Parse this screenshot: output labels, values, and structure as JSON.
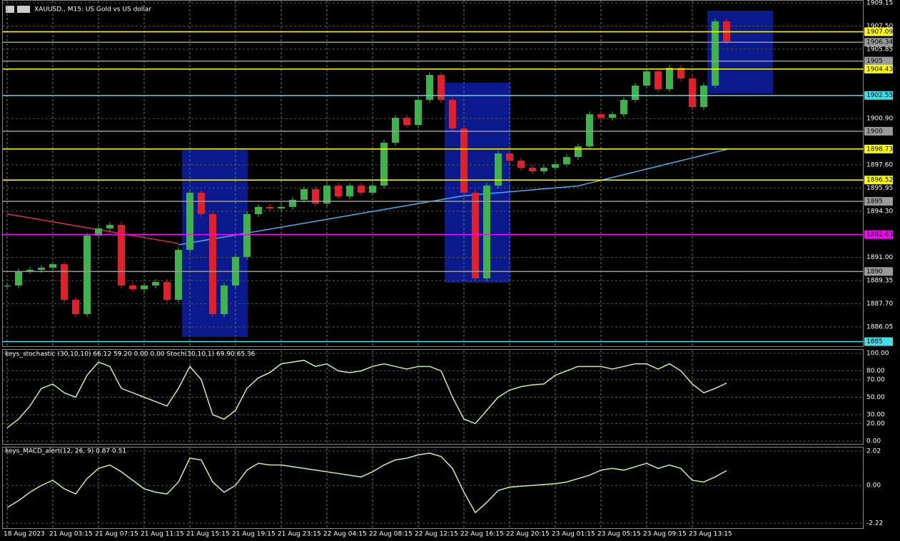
{
  "header": {
    "symbol": "XAUUSD., M15: US Gold vs US dollar"
  },
  "chart_data": [
    {
      "type": "candle",
      "up_color": "#3cb44b",
      "down_color": "#e0202a",
      "categories": [
        "18 Aug 2023",
        null,
        null,
        null,
        "21 Aug 03:15",
        null,
        null,
        null,
        "21 Aug 07:15",
        null,
        null,
        null,
        "21 Aug 11:15",
        null,
        null,
        null,
        "21 Aug 15:15",
        null,
        null,
        null,
        "21 Aug 19:15",
        null,
        null,
        null,
        "21 Aug 23:15",
        null,
        null,
        null,
        "22 Aug 04:15",
        null,
        null,
        null,
        "22 Aug 08:15",
        null,
        null,
        null,
        "22 Aug 12:15",
        null,
        null,
        null,
        "22 Aug 16:15",
        null,
        null,
        null,
        "22 Aug 20:15",
        null,
        null,
        null,
        "23 Aug 01:15",
        null,
        null,
        null,
        "23 Aug 05:15",
        null,
        null,
        null,
        "23 Aug 09:15",
        null,
        null,
        null,
        "23 Aug 13:15",
        null,
        null,
        null
      ],
      "values": [
        1889.0,
        1890.02,
        1890.12,
        1890.27,
        1890.52,
        1887.98,
        1886.96,
        1892.56,
        1893.07,
        1893.32,
        1889.0,
        1888.74,
        1889.0,
        1889.25,
        1887.98,
        1891.54,
        1895.61,
        1894.09,
        1886.96,
        1889.0,
        1891.04,
        1894.09,
        1894.6,
        1894.49,
        1894.6,
        1895.11,
        1895.87,
        1894.85,
        1896.12,
        1895.36,
        1896.12,
        1895.61,
        1896.12,
        1899.18,
        1900.96,
        1900.45,
        1902.23,
        1904.01,
        1902.23,
        1900.19,
        1895.61,
        1889.51,
        1896.12,
        1898.41,
        1897.9,
        1897.4,
        1897.14,
        1897.4,
        1897.65,
        1898.16,
        1898.92,
        1901.21,
        1900.96,
        1901.21,
        1902.23,
        1903.25,
        1904.27,
        1903.0,
        1904.52,
        1903.76,
        1901.72,
        1903.25,
        1907.83,
        1906.4
      ],
      "series": [
        {
          "color": "#d83050",
          "values": [
            1894.1,
            1893.96,
            1893.82,
            1893.68,
            1893.54,
            1893.4,
            1893.26,
            1893.12,
            1892.98,
            1892.84,
            1892.7,
            1892.56,
            1892.42,
            1892.28,
            1892.14,
            1892.0,
            null,
            null,
            null,
            null,
            null,
            null,
            null,
            null,
            null,
            null,
            null,
            null,
            null,
            null,
            null,
            null,
            null,
            null,
            null,
            null,
            null,
            null,
            null,
            null,
            null,
            null,
            null,
            null,
            null,
            null,
            null,
            null,
            null,
            null,
            null,
            null,
            null,
            null,
            null,
            null,
            null,
            null,
            null,
            null,
            null,
            null,
            null,
            null
          ]
        },
        {
          "color": "#40b0f0",
          "values": [
            null,
            null,
            null,
            null,
            null,
            null,
            null,
            null,
            null,
            null,
            null,
            null,
            null,
            null,
            null,
            1891.9,
            1892.04,
            1892.18,
            1892.32,
            1892.46,
            1892.6,
            1892.74,
            1892.88,
            1893.02,
            1893.16,
            1893.3,
            1893.44,
            1893.58,
            1893.72,
            1893.86,
            1894.0,
            1894.14,
            1894.28,
            1894.42,
            1894.56,
            1894.7,
            1894.84,
            1894.98,
            1895.12,
            1895.26,
            1895.4,
            1895.47,
            1895.54,
            1895.61,
            1895.68,
            1895.75,
            1895.82,
            1895.89,
            1895.96,
            1896.03,
            1896.1,
            1896.3,
            1896.5,
            1896.7,
            1896.9,
            1897.1,
            1897.3,
            1897.5,
            1897.7,
            1897.9,
            1898.1,
            1898.3,
            1898.5,
            1898.7
          ]
        }
      ],
      "levels": [
        {
          "value": 1907.09,
          "color": "#ffff00"
        },
        {
          "value": 1906.34,
          "color": "#9a9a9a"
        },
        {
          "value": 1905.0,
          "color": "#9a9a9a"
        },
        {
          "value": 1904.43,
          "color": "#ffff00"
        },
        {
          "value": 1902.55,
          "color": "#40e0e8"
        },
        {
          "value": 1900.0,
          "color": "#9a9a9a"
        },
        {
          "value": 1898.73,
          "color": "#ffff00"
        },
        {
          "value": 1896.52,
          "color": "#ffff00"
        },
        {
          "value": 1895.0,
          "color": "#9a9a9a"
        },
        {
          "value": 1892.63,
          "color": "#ff00ff"
        },
        {
          "value": 1890.0,
          "color": "#9a9a9a"
        },
        {
          "value": 1885.0,
          "color": "#40e0e8"
        }
      ],
      "ylim": [
        1886.05,
        1909.15
      ],
      "yticks": [
        {
          "value": 1909.15,
          "label": "1909.15"
        },
        {
          "value": 1907.5,
          "label": "1907.50"
        },
        1905.85,
        {
          "value": 1900.9,
          "label": "1900.90"
        },
        {
          "value": 1897.6,
          "label": "1897.60"
        },
        1895.95,
        {
          "value": 1894.3,
          "label": "1894.30"
        },
        {
          "value": 1891,
          "label": "1891.00"
        },
        1889.35,
        {
          "value": 1887.7,
          "label": "1887.70"
        },
        1886.05
      ]
    },
    {
      "type": "line",
      "title": "keys_stochastic (30,10,10) 66.12 59.20 0.00 0.00 Stoch(30,10,1) 69.90 65.36",
      "color": "#c8f0a0",
      "values": [
        15,
        25,
        40,
        60,
        65,
        55,
        50,
        75,
        90,
        85,
        60,
        55,
        50,
        45,
        40,
        60,
        85,
        70,
        30,
        25,
        35,
        60,
        72,
        78,
        88,
        90,
        92,
        85,
        88,
        80,
        78,
        80,
        85,
        88,
        85,
        82,
        85,
        85,
        80,
        50,
        25,
        20,
        35,
        50,
        58,
        62,
        64,
        65,
        75,
        80,
        85,
        85,
        85,
        82,
        85,
        88,
        88,
        82,
        88,
        80,
        65,
        55,
        60,
        66.12
      ],
      "ylim": [
        0,
        100
      ],
      "yticks": [
        {
          "value": 100,
          "label": "100.00"
        },
        {
          "value": 80,
          "label": "80.00"
        },
        {
          "value": 70,
          "label": "70.00"
        },
        {
          "value": 50,
          "label": "50.00"
        },
        {
          "value": 30,
          "label": "30.00"
        },
        {
          "value": 20,
          "label": "20.00"
        },
        {
          "value": 0,
          "label": "0.00"
        }
      ]
    },
    {
      "type": "line",
      "title": "keys_MACD_alert(12, 26, 9) 0.87 0.51",
      "color": "#c8f0a0",
      "values": [
        -1.3,
        -0.9,
        -0.4,
        0.0,
        0.3,
        -0.2,
        -0.5,
        0.4,
        1.0,
        1.2,
        0.8,
        0.3,
        -0.2,
        -0.4,
        -0.5,
        0.2,
        1.6,
        1.5,
        0.2,
        -0.4,
        0.0,
        0.9,
        1.3,
        1.2,
        1.2,
        1.1,
        1.0,
        0.9,
        0.8,
        0.7,
        0.6,
        0.5,
        0.8,
        1.2,
        1.5,
        1.6,
        1.8,
        1.9,
        1.7,
        1.0,
        -0.4,
        -1.6,
        -1.0,
        -0.3,
        -0.1,
        -0.05,
        0.0,
        0.05,
        0.1,
        0.2,
        0.4,
        0.6,
        0.9,
        1.0,
        0.9,
        1.1,
        1.3,
        1.0,
        1.2,
        1.0,
        0.3,
        0.2,
        0.5,
        0.87
      ],
      "ylim": [
        -2.22,
        2.02
      ],
      "yticks": [
        2.02,
        {
          "value": 0,
          "label": "0.00"
        },
        -2.22
      ]
    }
  ]
}
